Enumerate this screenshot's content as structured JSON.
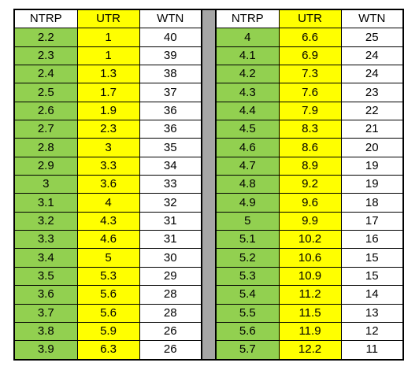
{
  "headers": {
    "left": [
      "NTRP",
      "UTR",
      "WTN"
    ],
    "right": [
      "NTRP",
      "UTR",
      "WTN"
    ]
  },
  "colors": {
    "ntrp_fill": "#92d050",
    "utr_fill": "#ffff00",
    "wtn_fill": "#ffffff",
    "separator_fill": "#a6a6a6"
  },
  "left_rows": [
    [
      "2.2",
      "1",
      "40"
    ],
    [
      "2.3",
      "1",
      "39"
    ],
    [
      "2.4",
      "1.3",
      "38"
    ],
    [
      "2.5",
      "1.7",
      "37"
    ],
    [
      "2.6",
      "1.9",
      "36"
    ],
    [
      "2.7",
      "2.3",
      "36"
    ],
    [
      "2.8",
      "3",
      "35"
    ],
    [
      "2.9",
      "3.3",
      "34"
    ],
    [
      "3",
      "3.6",
      "33"
    ],
    [
      "3.1",
      "4",
      "32"
    ],
    [
      "3.2",
      "4.3",
      "31"
    ],
    [
      "3.3",
      "4.6",
      "31"
    ],
    [
      "3.4",
      "5",
      "30"
    ],
    [
      "3.5",
      "5.3",
      "29"
    ],
    [
      "3.6",
      "5.6",
      "28"
    ],
    [
      "3.7",
      "5.6",
      "28"
    ],
    [
      "3.8",
      "5.9",
      "26"
    ],
    [
      "3.9",
      "6.3",
      "26"
    ]
  ],
  "right_rows": [
    [
      "4",
      "6.6",
      "25"
    ],
    [
      "4.1",
      "6.9",
      "24"
    ],
    [
      "4.2",
      "7.3",
      "24"
    ],
    [
      "4.3",
      "7.6",
      "23"
    ],
    [
      "4.4",
      "7.9",
      "22"
    ],
    [
      "4.5",
      "8.3",
      "21"
    ],
    [
      "4.6",
      "8.6",
      "20"
    ],
    [
      "4.7",
      "8.9",
      "19"
    ],
    [
      "4.8",
      "9.2",
      "19"
    ],
    [
      "4.9",
      "9.6",
      "18"
    ],
    [
      "5",
      "9.9",
      "17"
    ],
    [
      "5.1",
      "10.2",
      "16"
    ],
    [
      "5.2",
      "10.6",
      "15"
    ],
    [
      "5.3",
      "10.9",
      "15"
    ],
    [
      "5.4",
      "11.2",
      "14"
    ],
    [
      "5.5",
      "11.5",
      "13"
    ],
    [
      "5.6",
      "11.9",
      "12"
    ],
    [
      "5.7",
      "12.2",
      "11"
    ]
  ]
}
